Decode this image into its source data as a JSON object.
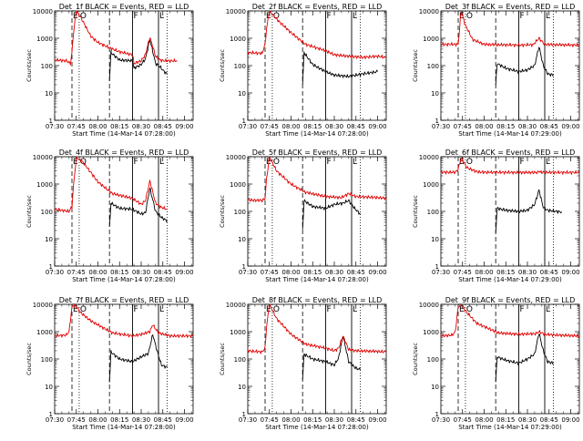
{
  "figure": {
    "xticks": [
      "07:30",
      "07:45",
      "08:00",
      "08:15",
      "08:30",
      "08:45",
      "09:00"
    ],
    "yticks": [
      "1",
      "10",
      "100",
      "1000",
      "10000"
    ],
    "ylabel": "Counts/sec",
    "xlabel": "Start Time (14-Mar-14 07:28:00)",
    "xlabel_alt": "Start Time (14-Mar-14 07:29:00)",
    "colors": {
      "events": "#000000",
      "lld": "#e00000"
    }
  },
  "chart_data": [
    {
      "type": "line",
      "title": "Det_1f BLACK = Events, RED = LLD",
      "xlabel": "Start Time (14-Mar-14 07:28:00)",
      "ylabel": "Counts/sec",
      "xlim": [
        "07:30",
        "09:06"
      ],
      "ylim": [
        1,
        10000
      ],
      "yscale": "log",
      "markers": {
        "letters": [
          "E",
          "O",
          "F",
          "L"
        ],
        "dashed": [
          "07:42",
          "08:08"
        ],
        "dotted": [
          "07:47",
          "08:48"
        ],
        "solid": [
          "08:24",
          "08:42"
        ]
      },
      "series": [
        {
          "name": "Events",
          "x": [
            "08:08",
            "08:09",
            "08:15",
            "08:24",
            "08:25",
            "08:30",
            "08:33",
            "08:36",
            "08:40",
            "08:43",
            "08:46",
            "08:48"
          ],
          "y": [
            30,
            300,
            160,
            150,
            80,
            110,
            180,
            900,
            120,
            90,
            60,
            50
          ]
        },
        {
          "name": "LLD",
          "x": [
            "07:30",
            "07:38",
            "07:41",
            "07:42",
            "07:43",
            "07:45",
            "07:48",
            "07:55",
            "08:00",
            "08:08",
            "08:15",
            "08:24",
            "08:25",
            "08:30",
            "08:33",
            "08:36",
            "08:40",
            "08:43",
            "08:46",
            "08:55"
          ],
          "y": [
            160,
            150,
            120,
            300,
            1500,
            10000,
            6000,
            1200,
            700,
            450,
            320,
            250,
            120,
            150,
            260,
            1100,
            220,
            160,
            150,
            150
          ]
        }
      ]
    },
    {
      "type": "line",
      "title": "Det_2f BLACK = Events, RED = LLD",
      "xlabel": "Start Time (14-Mar-14 07:28:00)",
      "ylabel": "Counts/sec",
      "xlim": [
        "07:30",
        "09:06"
      ],
      "ylim": [
        1,
        10000
      ],
      "yscale": "log",
      "markers": {
        "letters": [
          "E",
          "O",
          "F",
          "L"
        ],
        "dashed": [
          "07:42",
          "08:08"
        ],
        "dotted": [
          "07:47",
          "08:48"
        ],
        "solid": [
          "08:24",
          "08:42"
        ]
      },
      "series": [
        {
          "name": "Events",
          "x": [
            "08:08",
            "08:09",
            "08:15",
            "08:24",
            "08:30",
            "08:40",
            "08:50",
            "09:00"
          ],
          "y": [
            20,
            300,
            110,
            60,
            45,
            40,
            50,
            60
          ]
        },
        {
          "name": "LLD",
          "x": [
            "07:30",
            "07:40",
            "07:42",
            "07:43",
            "07:45",
            "07:50",
            "08:00",
            "08:10",
            "08:24",
            "08:30",
            "08:40",
            "08:50",
            "09:00",
            "09:06"
          ],
          "y": [
            300,
            280,
            600,
            2200,
            10000,
            5000,
            1600,
            600,
            350,
            250,
            220,
            200,
            220,
            200
          ]
        }
      ]
    },
    {
      "type": "line",
      "title": "Det_3f BLACK = Events, RED = LLD",
      "xlabel": "Start Time (14-Mar-14 07:29:00)",
      "ylabel": "Counts/sec",
      "xlim": [
        "07:30",
        "09:06"
      ],
      "ylim": [
        1,
        10000
      ],
      "yscale": "log",
      "markers": {
        "letters": [
          "E",
          "O",
          "F",
          "L"
        ],
        "dashed": [
          "07:42",
          "08:08"
        ],
        "dotted": [
          "07:47",
          "08:48"
        ],
        "solid": [
          "08:24",
          "08:42"
        ]
      },
      "series": [
        {
          "name": "Events",
          "x": [
            "08:08",
            "08:09",
            "08:15",
            "08:24",
            "08:30",
            "08:35",
            "08:38",
            "08:41",
            "08:44",
            "08:48"
          ],
          "y": [
            20,
            120,
            80,
            60,
            70,
            100,
            500,
            100,
            50,
            45
          ]
        },
        {
          "name": "LLD",
          "x": [
            "07:30",
            "07:42",
            "07:44",
            "07:47",
            "07:52",
            "08:00",
            "08:10",
            "08:24",
            "08:34",
            "08:38",
            "08:42",
            "08:50",
            "09:06"
          ],
          "y": [
            600,
            600,
            10000,
            3000,
            900,
            600,
            580,
            560,
            580,
            1000,
            600,
            580,
            560
          ]
        }
      ]
    },
    {
      "type": "line",
      "title": "Det_4f BLACK = Events, RED = LLD",
      "xlabel": "Start Time (14-Mar-14 07:28:00)",
      "ylabel": "Counts/sec",
      "xlim": [
        "07:30",
        "09:06"
      ],
      "ylim": [
        1,
        10000
      ],
      "yscale": "log",
      "markers": {
        "letters": [
          "E",
          "O",
          "F",
          "L"
        ],
        "dashed": [
          "07:42",
          "08:08"
        ],
        "dotted": [
          "07:47",
          "08:48"
        ],
        "solid": [
          "08:24",
          "08:42"
        ]
      },
      "series": [
        {
          "name": "Events",
          "x": [
            "08:08",
            "08:09",
            "08:15",
            "08:24",
            "08:30",
            "08:33",
            "08:36",
            "08:40",
            "08:44",
            "08:48"
          ],
          "y": [
            25,
            200,
            130,
            120,
            80,
            90,
            700,
            100,
            60,
            45
          ]
        },
        {
          "name": "LLD",
          "x": [
            "07:30",
            "07:40",
            "07:42",
            "07:43",
            "07:45",
            "07:50",
            "08:00",
            "08:10",
            "08:24",
            "08:30",
            "08:33",
            "08:36",
            "08:40",
            "08:44",
            "08:48"
          ],
          "y": [
            120,
            100,
            150,
            800,
            10000,
            6000,
            1200,
            450,
            300,
            180,
            250,
            1300,
            200,
            140,
            120
          ]
        }
      ]
    },
    {
      "type": "line",
      "title": "Det_5f BLACK = Events, RED = LLD",
      "xlabel": "Start Time (14-Mar-14 07:28:00)",
      "ylabel": "Counts/sec",
      "xlim": [
        "07:30",
        "09:06"
      ],
      "ylim": [
        1,
        10000
      ],
      "yscale": "log",
      "markers": {
        "letters": [
          "E",
          "O",
          "F",
          "L"
        ],
        "dashed": [
          "07:42",
          "08:08"
        ],
        "dotted": [
          "07:47",
          "08:48"
        ],
        "solid": [
          "08:24",
          "08:42"
        ]
      },
      "series": [
        {
          "name": "Events",
          "x": [
            "08:08",
            "08:09",
            "08:15",
            "08:24",
            "08:30",
            "08:36",
            "08:40",
            "08:44",
            "08:48"
          ],
          "y": [
            20,
            250,
            150,
            130,
            180,
            200,
            250,
            130,
            80
          ]
        },
        {
          "name": "LLD",
          "x": [
            "07:30",
            "07:40",
            "07:42",
            "07:43",
            "07:45",
            "07:50",
            "08:00",
            "08:10",
            "08:24",
            "08:35",
            "08:40",
            "08:45",
            "09:00",
            "09:06"
          ],
          "y": [
            260,
            250,
            300,
            1500,
            10000,
            3000,
            1000,
            500,
            350,
            320,
            450,
            350,
            320,
            300
          ]
        }
      ]
    },
    {
      "type": "line",
      "title": "Det_6f BLACK = Events, RED = LLD",
      "xlabel": "Start Time (14-Mar-14 07:29:00)",
      "ylabel": "Counts/sec",
      "xlim": [
        "07:30",
        "09:06"
      ],
      "ylim": [
        1,
        10000
      ],
      "yscale": "log",
      "markers": {
        "letters": [
          "E",
          "O",
          "F",
          "L"
        ],
        "dashed": [
          "07:42",
          "08:08"
        ],
        "dotted": [
          "07:47",
          "08:48"
        ],
        "solid": [
          "08:24",
          "08:42"
        ]
      },
      "series": [
        {
          "name": "Events",
          "x": [
            "08:08",
            "08:09",
            "08:15",
            "08:24",
            "08:30",
            "08:35",
            "08:38",
            "08:41",
            "08:44",
            "08:50",
            "08:54"
          ],
          "y": [
            18,
            130,
            110,
            100,
            110,
            180,
            600,
            140,
            110,
            100,
            95
          ]
        },
        {
          "name": "LLD",
          "x": [
            "07:30",
            "07:40",
            "07:42",
            "07:44",
            "07:48",
            "07:55",
            "08:00",
            "08:24",
            "08:37",
            "08:38",
            "08:39",
            "08:50",
            "09:06"
          ],
          "y": [
            2700,
            2700,
            3500,
            9000,
            4000,
            2800,
            2700,
            2650,
            2650,
            3000,
            2700,
            2650,
            2650
          ]
        }
      ]
    },
    {
      "type": "line",
      "title": "Det_7f BLACK = Events, RED = LLD",
      "xlabel": "Start Time (14-Mar-14 07:28:00)",
      "ylabel": "Counts/sec",
      "xlim": [
        "07:30",
        "09:06"
      ],
      "ylim": [
        1,
        10000
      ],
      "yscale": "log",
      "markers": {
        "letters": [
          "E",
          "O",
          "F",
          "L"
        ],
        "dashed": [
          "07:42",
          "08:08"
        ],
        "dotted": [
          "07:47",
          "08:48"
        ],
        "solid": [
          "08:24",
          "08:42"
        ]
      },
      "series": [
        {
          "name": "Events",
          "x": [
            "08:08",
            "08:09",
            "08:15",
            "08:24",
            "08:30",
            "08:35",
            "08:38",
            "08:41",
            "08:44",
            "08:48"
          ],
          "y": [
            15,
            180,
            100,
            80,
            120,
            160,
            800,
            200,
            60,
            50
          ]
        },
        {
          "name": "LLD",
          "x": [
            "07:30",
            "07:38",
            "07:40",
            "07:42",
            "07:44",
            "07:48",
            "07:55",
            "08:10",
            "08:24",
            "08:30",
            "08:36",
            "08:38",
            "08:42",
            "08:50",
            "09:06"
          ],
          "y": [
            700,
            750,
            1000,
            8000,
            10000,
            5000,
            2500,
            900,
            700,
            800,
            1000,
            1800,
            900,
            700,
            700
          ]
        }
      ]
    },
    {
      "type": "line",
      "title": "Det_8f BLACK = Events, RED = LLD",
      "xlabel": "Start Time (14-Mar-14 07:28:00)",
      "ylabel": "Counts/sec",
      "xlim": [
        "07:30",
        "09:06"
      ],
      "ylim": [
        1,
        10000
      ],
      "yscale": "log",
      "markers": {
        "letters": [
          "E",
          "O",
          "F",
          "L"
        ],
        "dashed": [
          "07:42",
          "08:08"
        ],
        "dotted": [
          "07:47",
          "08:48"
        ],
        "solid": [
          "08:24",
          "08:42"
        ]
      },
      "series": [
        {
          "name": "Events",
          "x": [
            "08:08",
            "08:09",
            "08:15",
            "08:24",
            "08:30",
            "08:33",
            "08:36",
            "08:40",
            "08:44",
            "08:48"
          ],
          "y": [
            18,
            150,
            100,
            80,
            60,
            110,
            700,
            80,
            50,
            40
          ]
        },
        {
          "name": "LLD",
          "x": [
            "07:30",
            "07:40",
            "07:42",
            "07:43",
            "07:45",
            "07:50",
            "08:00",
            "08:10",
            "08:24",
            "08:30",
            "08:33",
            "08:36",
            "08:40",
            "08:45",
            "09:00",
            "09:06"
          ],
          "y": [
            200,
            180,
            250,
            1500,
            10000,
            3000,
            800,
            350,
            250,
            200,
            250,
            700,
            220,
            200,
            190,
            180
          ]
        }
      ]
    },
    {
      "type": "line",
      "title": "Det_9f BLACK = Events, RED = LLD",
      "xlabel": "Start Time (14-Mar-14 07:29:00)",
      "ylabel": "Counts/sec",
      "xlim": [
        "07:30",
        "09:06"
      ],
      "ylim": [
        1,
        10000
      ],
      "yscale": "log",
      "markers": {
        "letters": [
          "E",
          "O",
          "F",
          "L"
        ],
        "dashed": [
          "07:42",
          "08:08"
        ],
        "dotted": [
          "07:47",
          "08:48"
        ],
        "solid": [
          "08:24",
          "08:42"
        ]
      },
      "series": [
        {
          "name": "Events",
          "x": [
            "08:08",
            "08:09",
            "08:15",
            "08:24",
            "08:30",
            "08:35",
            "08:38",
            "08:41",
            "08:44",
            "08:48"
          ],
          "y": [
            15,
            120,
            90,
            70,
            100,
            150,
            900,
            200,
            80,
            70
          ]
        },
        {
          "name": "LLD",
          "x": [
            "07:30",
            "07:38",
            "07:40",
            "07:42",
            "07:44",
            "07:48",
            "07:55",
            "08:10",
            "08:24",
            "08:36",
            "08:38",
            "08:42",
            "08:50",
            "09:06"
          ],
          "y": [
            700,
            750,
            1000,
            8000,
            10000,
            5000,
            2000,
            900,
            800,
            850,
            1000,
            800,
            750,
            700
          ]
        }
      ]
    }
  ]
}
